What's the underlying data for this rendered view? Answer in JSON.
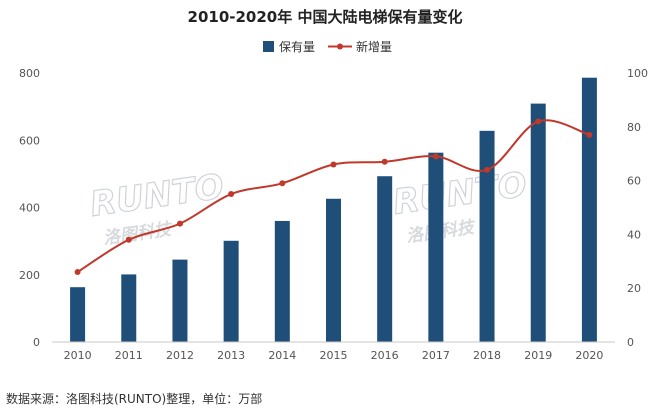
{
  "source_note": "数据来源：洛图科技(RUNTO)整理，单位：万部",
  "watermark": {
    "brand": "RUNTO",
    "cn": "洛图科技"
  },
  "chart_data": {
    "type": "bar+line",
    "title": "2010-2020年 中国大陆电梯保有量变化",
    "categories": [
      "2010",
      "2011",
      "2012",
      "2013",
      "2014",
      "2015",
      "2016",
      "2017",
      "2018",
      "2019",
      "2020"
    ],
    "series": [
      {
        "name": "保有量",
        "type": "bar",
        "axis": "left",
        "color": "#1f4e79",
        "values": [
          163,
          201,
          245,
          301,
          360,
          426,
          493,
          563,
          628,
          709,
          786
        ]
      },
      {
        "name": "新增量",
        "type": "line",
        "axis": "right",
        "color": "#c0392b",
        "values": [
          26,
          38,
          44,
          55,
          59,
          66,
          67,
          69,
          64,
          82,
          77
        ]
      }
    ],
    "y_left": {
      "min": 0,
      "max": 800,
      "ticks": [
        0,
        200,
        400,
        600,
        800
      ]
    },
    "y_right": {
      "min": 0,
      "max": 100,
      "ticks": [
        0,
        20,
        40,
        60,
        80,
        100
      ]
    },
    "legend_position": "top-center",
    "grid": false
  }
}
